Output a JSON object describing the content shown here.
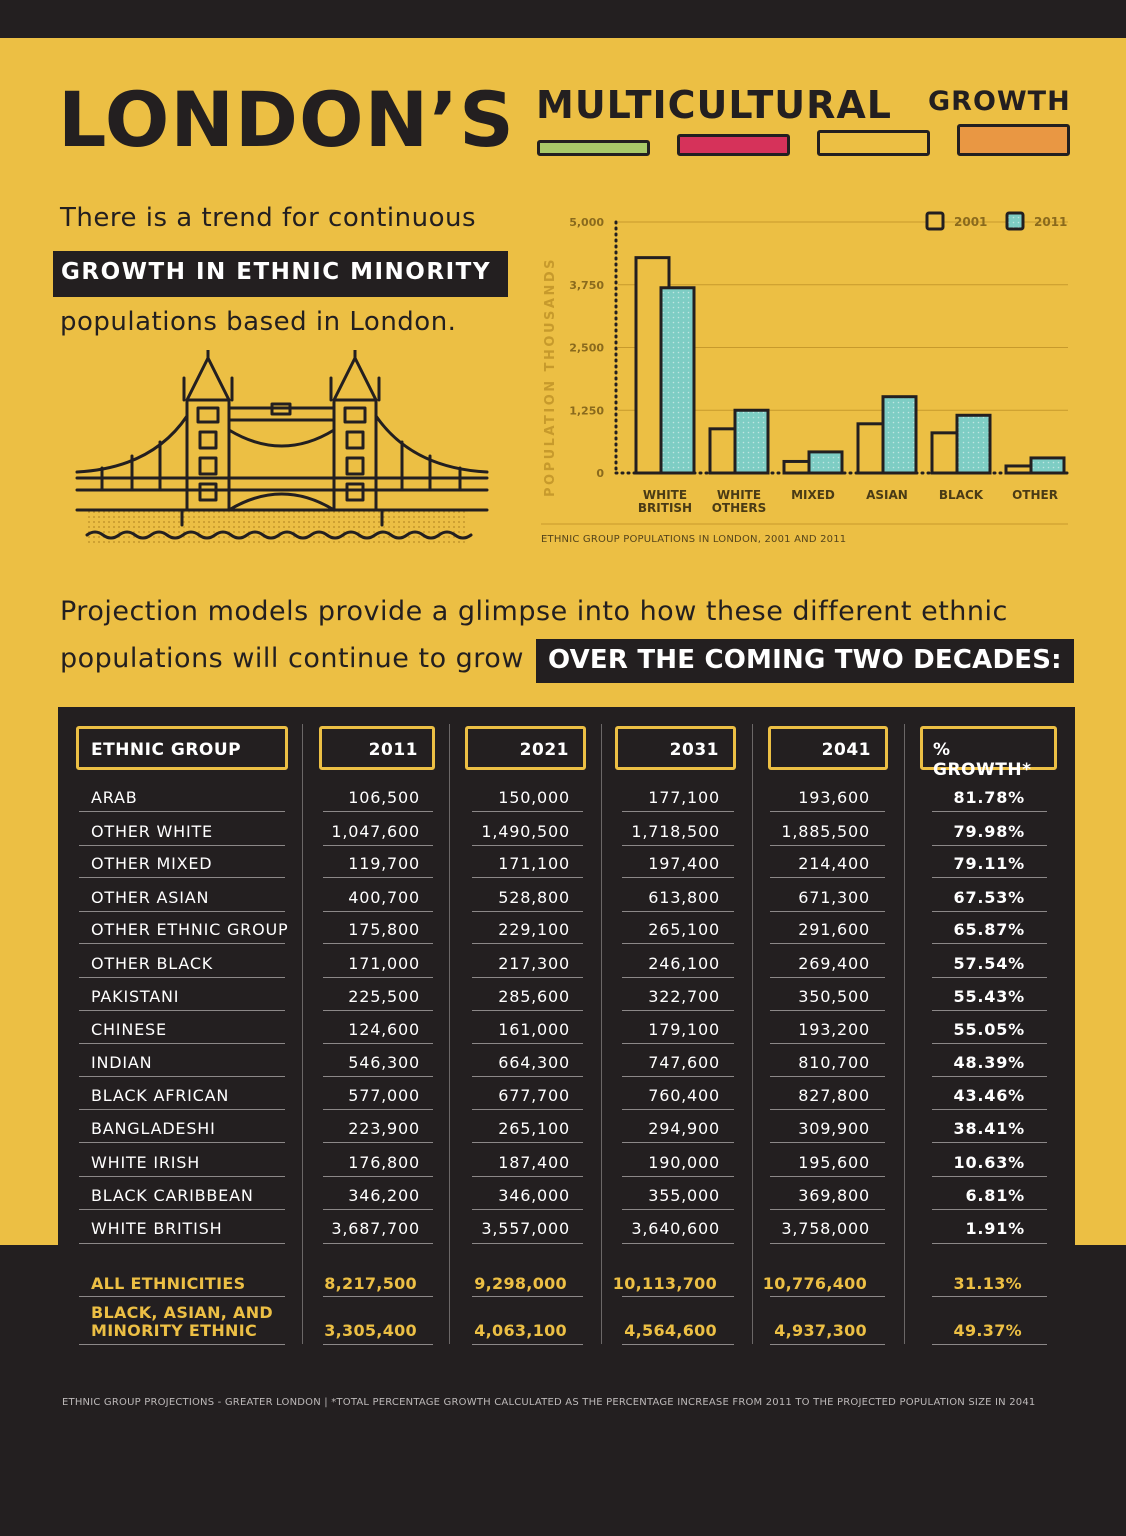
{
  "title": {
    "main": "LONDON’S",
    "multicultural": "MULTICULTURAL",
    "growth": "GROWTH"
  },
  "colors": {
    "background": "#ecbf44",
    "dark": "#231f20",
    "teal": "#7ecdc4",
    "green": "#a9c969",
    "pink": "#d6325a",
    "orange": "#e99743"
  },
  "intro": {
    "line1": "There is a trend for continuous",
    "highlight": "GROWTH IN ETHNIC MINORITY",
    "line3": "populations based in London."
  },
  "chart_data": {
    "type": "bar",
    "title": "",
    "ylabel": "POPULATION THOUSANDS",
    "xlabel": "",
    "caption": "ETHNIC GROUP POPULATIONS IN LONDON, 2001 AND 2011",
    "ylim": [
      0,
      5000
    ],
    "yticks": [
      "0",
      "1,250",
      "2,500",
      "3,750",
      "5,000"
    ],
    "legend_position": "top-right",
    "categories": [
      "WHITE BRITISH",
      "WHITE OTHERS",
      "MIXED",
      "ASIAN",
      "BLACK",
      "OTHER"
    ],
    "series": [
      {
        "name": "2001",
        "color": "#ecbf44",
        "values": [
          4290,
          880,
          230,
          980,
          800,
          140
        ]
      },
      {
        "name": "2011",
        "color": "#7ecdc4",
        "values": [
          3690,
          1250,
          420,
          1520,
          1150,
          300
        ]
      }
    ]
  },
  "projection": {
    "line1": "Projection models provide a glimpse into how these different ethnic",
    "line2": "populations will continue to grow",
    "highlight": "OVER THE COMING TWO DECADES:"
  },
  "table": {
    "headers": [
      "ETHNIC GROUP",
      "2011",
      "2021",
      "2031",
      "2041",
      "% GROWTH*"
    ],
    "rows": [
      [
        "ARAB",
        "106,500",
        "150,000",
        "177,100",
        "193,600",
        "81.78%"
      ],
      [
        "OTHER WHITE",
        "1,047,600",
        "1,490,500",
        "1,718,500",
        "1,885,500",
        "79.98%"
      ],
      [
        "OTHER MIXED",
        "119,700",
        "171,100",
        "197,400",
        "214,400",
        "79.11%"
      ],
      [
        "OTHER ASIAN",
        "400,700",
        "528,800",
        "613,800",
        "671,300",
        "67.53%"
      ],
      [
        "OTHER ETHNIC GROUP",
        "175,800",
        "229,100",
        "265,100",
        "291,600",
        "65.87%"
      ],
      [
        "OTHER BLACK",
        "171,000",
        "217,300",
        "246,100",
        "269,400",
        "57.54%"
      ],
      [
        "PAKISTANI",
        "225,500",
        "285,600",
        "322,700",
        "350,500",
        "55.43%"
      ],
      [
        "CHINESE",
        "124,600",
        "161,000",
        "179,100",
        "193,200",
        "55.05%"
      ],
      [
        "INDIAN",
        "546,300",
        "664,300",
        "747,600",
        "810,700",
        "48.39%"
      ],
      [
        "BLACK AFRICAN",
        "577,000",
        "677,700",
        "760,400",
        "827,800",
        "43.46%"
      ],
      [
        "BANGLADESHI",
        "223,900",
        "265,100",
        "294,900",
        "309,900",
        "38.41%"
      ],
      [
        "WHITE IRISH",
        "176,800",
        "187,400",
        "190,000",
        "195,600",
        "10.63%"
      ],
      [
        "BLACK CARIBBEAN",
        "346,200",
        "346,000",
        "355,000",
        "369,800",
        "6.81%"
      ],
      [
        "WHITE BRITISH",
        "3,687,700",
        "3,557,000",
        "3,640,600",
        "3,758,000",
        "1.91%"
      ]
    ],
    "totals": [
      [
        "ALL ETHNICITIES",
        "",
        "8,217,500",
        "9,298,000",
        "10,113,700",
        "10,776,400",
        "31.13%"
      ],
      [
        "BLACK, ASIAN, AND",
        "MINORITY ETHNIC",
        "3,305,400",
        "4,063,100",
        "4,564,600",
        "4,937,300",
        "49.37%"
      ]
    ]
  },
  "footnote": "ETHNIC GROUP PROJECTIONS - GREATER LONDON  |  *TOTAL PERCENTAGE GROWTH CALCULATED AS THE PERCENTAGE INCREASE FROM 2011 TO THE PROJECTED POPULATION SIZE IN 2041"
}
